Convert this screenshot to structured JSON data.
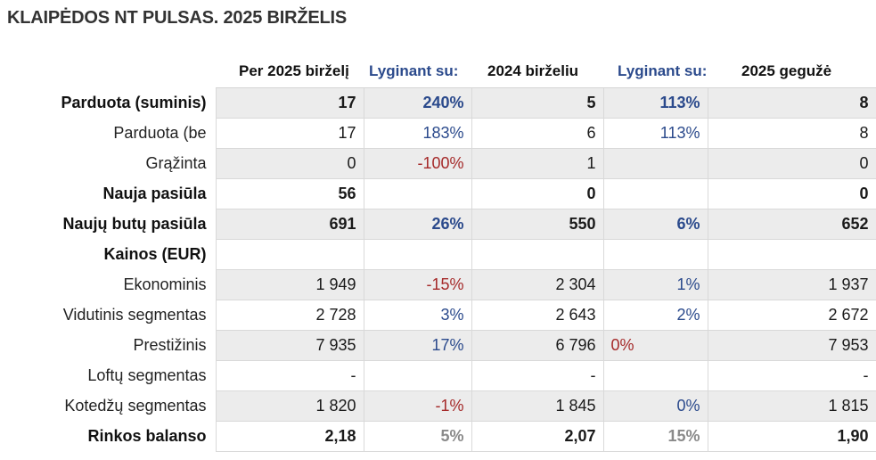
{
  "title": "KLAIPĖDOS NT PULSAS. 2025 BIRŽELIS",
  "headers": {
    "col1": "Per 2025 birželį",
    "col2": "Lyginant su:",
    "col3": "2024 birželiu",
    "col4": "Lyginant su:",
    "col5": "2025 gegužė"
  },
  "rows": [
    {
      "label": "Parduota (suminis)",
      "v1": "17",
      "p1": "240%",
      "v2": "5",
      "p2": "113%",
      "v3": "8"
    },
    {
      "label": "Parduota (be",
      "v1": "17",
      "p1": "183%",
      "v2": "6",
      "p2": "113%",
      "v3": "8"
    },
    {
      "label": "Grąžinta",
      "v1": "0",
      "p1": "-100%",
      "v2": "1",
      "p2": "",
      "v3": "0"
    },
    {
      "label": "Nauja pasiūla",
      "v1": "56",
      "p1": "",
      "v2": "0",
      "p2": "",
      "v3": "0"
    },
    {
      "label": "Naujų butų pasiūla",
      "v1": "691",
      "p1": "26%",
      "v2": "550",
      "p2": "6%",
      "v3": "652"
    },
    {
      "label": "Kainos (EUR)",
      "v1": "",
      "p1": "",
      "v2": "",
      "p2": "",
      "v3": ""
    },
    {
      "label": "Ekonominis",
      "v1": "1 949",
      "p1": "-15%",
      "v2": "2 304",
      "p2": "1%",
      "v3": "1 937"
    },
    {
      "label": "Vidutinis segmentas",
      "v1": "2 728",
      "p1": "3%",
      "v2": "2 643",
      "p2": "2%",
      "v3": "2 672"
    },
    {
      "label": "Prestižinis",
      "v1": "7 935",
      "p1": "17%",
      "v2": "6 796",
      "p2": "0%",
      "v3": "7 953"
    },
    {
      "label": "Loftų segmentas",
      "v1": "-",
      "p1": "",
      "v2": "-",
      "p2": "",
      "v3": "-"
    },
    {
      "label": "Kotedžų segmentas",
      "v1": "1 820",
      "p1": "-1%",
      "v2": "1 845",
      "p2": "0%",
      "v3": "1 815"
    },
    {
      "label": "Rinkos balanso",
      "v1": "2,18",
      "p1": "5%",
      "v2": "2,07",
      "p2": "15%",
      "v3": "1,90"
    }
  ],
  "colors": {
    "positive": "#2b4a8c",
    "negative": "#a52a2a",
    "neutral": "#8a8a8a",
    "shade": "#ececec"
  }
}
